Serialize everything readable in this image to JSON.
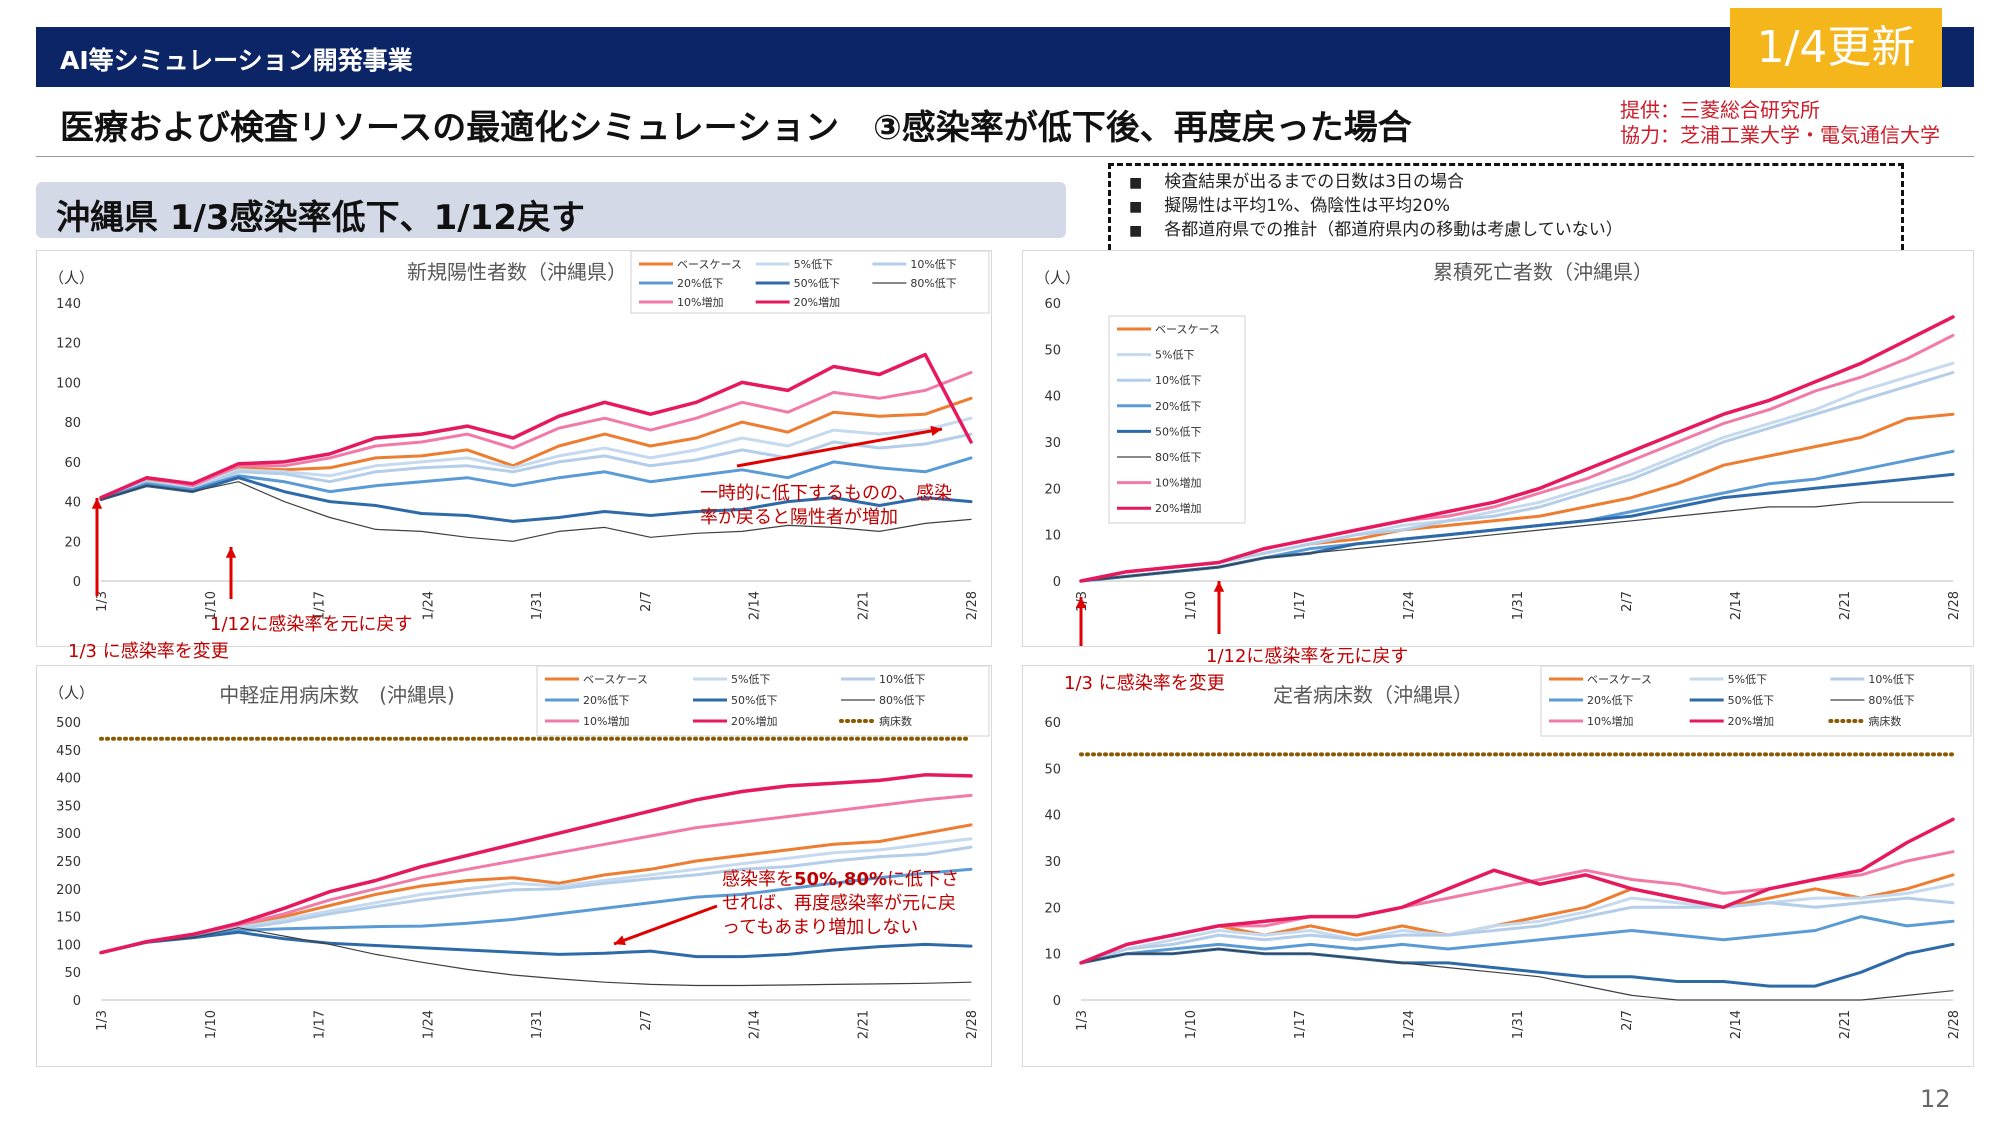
{
  "header": {
    "category": "AI等シミュレーション開発事業",
    "update_badge": "1/4更新",
    "title": "医療および検査リソースの最適化シミュレーション　③感染率が低下後、再度戻った場合",
    "credit_line1": "提供：三菱総合研究所",
    "credit_line2": "協力：芝浦工業大学・電気通信大学"
  },
  "subheader": "沖縄県 1/3感染率低下、1/12戻す",
  "notes": [
    "検査結果が出るまでの日数は3日の場合",
    "擬陽性は平均1%、偽陰性は平均20%",
    "各都道府県での推計（都道府県内の移動は考慮していない）"
  ],
  "page_number": "12",
  "colors": {
    "ベースケース": "#ed7d31",
    "5%低下": "#c5d9ef",
    "10%低下": "#b4cde9",
    "20%低下": "#5b9bd5",
    "50%低下": "#2e6aa8",
    "80%低下": "#404040",
    "10%増加": "#f27aa8",
    "20%増加": "#e6195f",
    "病床数": "#8a5a00"
  },
  "annotations": {
    "c1_arrow_text": "一時的に低下するものの、感染率が戻ると陽性者が増加",
    "c1_change": "1/3 に感染率を変更",
    "c1_restore": "1/12に感染率を元に戻す",
    "c2_change": "1/3 に感染率を変更",
    "c2_restore": "1/12に感染率を元に戻す",
    "c3_arrow_text_a": "感染率を",
    "c3_arrow_text_b": "50%,80%",
    "c3_arrow_text_c": "に低下させれば、再度感染率が元に戻ってもあまり増加しない"
  },
  "chart_data": [
    {
      "type": "line",
      "title": "新規陽性者数（沖縄県）",
      "ylabel": "（人）",
      "ylim": [
        0,
        140
      ],
      "yticks": [
        0,
        20,
        40,
        60,
        80,
        100,
        120,
        140
      ],
      "xtick_labels": [
        "1/3",
        "1/10",
        "1/17",
        "1/24",
        "1/31",
        "2/7",
        "2/14",
        "2/21",
        "2/28"
      ],
      "x_start": "1/3",
      "x_end": "2/28",
      "legend": [
        "ベースケース",
        "5%低下",
        "10%低下",
        "20%低下",
        "50%低下",
        "80%低下",
        "10%増加",
        "20%増加"
      ],
      "series": [
        {
          "name": "ベースケース",
          "values": [
            41,
            51,
            47,
            57,
            56,
            57,
            62,
            63,
            66,
            58,
            68,
            74,
            68,
            72,
            80,
            75,
            85,
            83,
            84,
            92
          ]
        },
        {
          "name": "5%低下",
          "values": [
            41,
            50,
            47,
            56,
            55,
            53,
            58,
            60,
            62,
            57,
            63,
            67,
            62,
            66,
            72,
            68,
            76,
            74,
            76,
            82
          ]
        },
        {
          "name": "10%低下",
          "values": [
            41,
            50,
            46,
            55,
            54,
            50,
            55,
            57,
            58,
            55,
            60,
            63,
            58,
            61,
            66,
            62,
            70,
            67,
            69,
            74
          ]
        },
        {
          "name": "20%低下",
          "values": [
            41,
            49,
            46,
            53,
            50,
            45,
            48,
            50,
            52,
            48,
            52,
            55,
            50,
            53,
            56,
            52,
            60,
            57,
            55,
            62
          ]
        },
        {
          "name": "50%低下",
          "values": [
            41,
            48,
            45,
            52,
            45,
            40,
            38,
            34,
            33,
            30,
            32,
            35,
            33,
            35,
            36,
            40,
            42,
            38,
            42,
            40
          ]
        },
        {
          "name": "80%低下",
          "values": [
            41,
            48,
            45,
            50,
            40,
            32,
            26,
            25,
            22,
            20,
            25,
            27,
            22,
            24,
            25,
            28,
            27,
            25,
            29,
            31
          ]
        },
        {
          "name": "10%増加",
          "values": [
            42,
            52,
            48,
            58,
            58,
            62,
            68,
            70,
            74,
            67,
            77,
            82,
            76,
            82,
            90,
            85,
            95,
            92,
            96,
            105
          ]
        },
        {
          "name": "20%増加",
          "values": [
            42,
            52,
            49,
            59,
            60,
            64,
            72,
            74,
            78,
            72,
            83,
            90,
            84,
            90,
            100,
            96,
            108,
            104,
            114,
            70
          ]
        }
      ]
    },
    {
      "type": "line",
      "title": "累積死亡者数（沖縄県）",
      "ylabel": "（人）",
      "ylim": [
        0,
        60
      ],
      "yticks": [
        0,
        10,
        20,
        30,
        40,
        50,
        60
      ],
      "xtick_labels": [
        "1/3",
        "1/10",
        "1/17",
        "1/24",
        "1/31",
        "2/7",
        "2/14",
        "2/21",
        "2/28"
      ],
      "x_start": "1/3",
      "x_end": "2/28",
      "legend": [
        "ベースケース",
        "5%低下",
        "10%低下",
        "20%低下",
        "50%低下",
        "80%低下",
        "10%増加",
        "20%増加"
      ],
      "series": [
        {
          "name": "ベースケース",
          "values": [
            0,
            2,
            3,
            4,
            6,
            8,
            9,
            11,
            12,
            13,
            14,
            16,
            18,
            21,
            25,
            27,
            29,
            31,
            35,
            36
          ]
        },
        {
          "name": "5%低下",
          "values": [
            0,
            2,
            3,
            4,
            6,
            8,
            10,
            12,
            13,
            15,
            17,
            20,
            23,
            27,
            31,
            34,
            37,
            41,
            44,
            47
          ]
        },
        {
          "name": "10%低下",
          "values": [
            0,
            2,
            3,
            4,
            6,
            8,
            10,
            11,
            13,
            14,
            16,
            19,
            22,
            26,
            30,
            33,
            36,
            39,
            42,
            45
          ]
        },
        {
          "name": "20%低下",
          "values": [
            0,
            1,
            2,
            3,
            5,
            7,
            8,
            9,
            10,
            11,
            12,
            13,
            15,
            17,
            19,
            21,
            22,
            24,
            26,
            28
          ]
        },
        {
          "name": "50%低下",
          "values": [
            0,
            1,
            2,
            3,
            5,
            6,
            8,
            9,
            10,
            11,
            12,
            13,
            14,
            16,
            18,
            19,
            20,
            21,
            22,
            23
          ]
        },
        {
          "name": "80%低下",
          "values": [
            0,
            1,
            2,
            3,
            5,
            6,
            7,
            8,
            9,
            10,
            11,
            12,
            13,
            14,
            15,
            16,
            16,
            17,
            17,
            17
          ]
        },
        {
          "name": "10%増加",
          "values": [
            0,
            2,
            3,
            4,
            7,
            9,
            11,
            13,
            14,
            16,
            19,
            22,
            26,
            30,
            34,
            37,
            41,
            44,
            48,
            53
          ]
        },
        {
          "name": "20%増加",
          "values": [
            0,
            2,
            3,
            4,
            7,
            9,
            11,
            13,
            15,
            17,
            20,
            24,
            28,
            32,
            36,
            39,
            43,
            47,
            52,
            57
          ]
        }
      ]
    },
    {
      "type": "line",
      "title": "中軽症用病床数　(沖縄県)",
      "ylabel": "（人）",
      "ylim": [
        0,
        500
      ],
      "yticks": [
        0,
        50,
        100,
        150,
        200,
        250,
        300,
        350,
        400,
        450,
        500
      ],
      "xtick_labels": [
        "1/3",
        "1/10",
        "1/17",
        "1/24",
        "1/31",
        "2/7",
        "2/14",
        "2/21",
        "2/28"
      ],
      "x_start": "1/3",
      "x_end": "2/28",
      "legend": [
        "ベースケース",
        "5%低下",
        "10%低下",
        "20%低下",
        "50%低下",
        "80%低下",
        "10%増加",
        "20%増加",
        "病床数"
      ],
      "series": [
        {
          "name": "ベースケース",
          "values": [
            85,
            105,
            115,
            130,
            150,
            170,
            190,
            205,
            215,
            220,
            210,
            225,
            235,
            250,
            260,
            270,
            280,
            285,
            300,
            315
          ]
        },
        {
          "name": "5%低下",
          "values": [
            85,
            105,
            115,
            130,
            145,
            160,
            175,
            190,
            200,
            210,
            205,
            215,
            225,
            235,
            245,
            255,
            265,
            270,
            280,
            290
          ]
        },
        {
          "name": "10%低下",
          "values": [
            85,
            104,
            114,
            128,
            140,
            155,
            168,
            180,
            190,
            198,
            200,
            210,
            218,
            225,
            235,
            240,
            250,
            258,
            262,
            275
          ]
        },
        {
          "name": "20%低下",
          "values": [
            85,
            104,
            114,
            125,
            128,
            130,
            132,
            133,
            138,
            145,
            155,
            165,
            175,
            185,
            190,
            200,
            210,
            220,
            228,
            235
          ]
        },
        {
          "name": "50%低下",
          "values": [
            85,
            104,
            112,
            122,
            110,
            102,
            98,
            94,
            90,
            86,
            82,
            84,
            88,
            78,
            78,
            82,
            90,
            96,
            100,
            97
          ]
        },
        {
          "name": "80%低下",
          "values": [
            85,
            104,
            112,
            130,
            115,
            100,
            82,
            68,
            55,
            45,
            38,
            32,
            28,
            26,
            26,
            27,
            28,
            29,
            30,
            32
          ]
        },
        {
          "name": "10%増加",
          "values": [
            85,
            105,
            118,
            135,
            155,
            180,
            200,
            220,
            235,
            250,
            265,
            280,
            295,
            310,
            320,
            330,
            340,
            350,
            360,
            368
          ]
        },
        {
          "name": "20%増加",
          "values": [
            85,
            105,
            118,
            138,
            165,
            195,
            215,
            240,
            260,
            280,
            300,
            320,
            340,
            360,
            375,
            385,
            390,
            395,
            405,
            403
          ]
        },
        {
          "name": "病床数",
          "values": [
            470,
            470,
            470,
            470,
            470,
            470,
            470,
            470,
            470,
            470,
            470,
            470,
            470,
            470,
            470,
            470,
            470,
            470,
            470,
            470
          ]
        }
      ]
    },
    {
      "type": "line",
      "title": "定者病床数（沖縄県）",
      "ylim": [
        0,
        60
      ],
      "yticks": [
        0,
        10,
        20,
        30,
        40,
        50,
        60
      ],
      "xtick_labels": [
        "1/3",
        "1/10",
        "1/17",
        "1/24",
        "1/31",
        "2/7",
        "2/14",
        "2/21",
        "2/28"
      ],
      "x_start": "1/3",
      "x_end": "2/28",
      "legend": [
        "ベースケース",
        "5%低下",
        "10%低下",
        "20%低下",
        "50%低下",
        "80%低下",
        "10%増加",
        "20%増加",
        "病床数"
      ],
      "series": [
        {
          "name": "ベースケース",
          "values": [
            8,
            12,
            14,
            16,
            14,
            16,
            14,
            16,
            14,
            16,
            18,
            20,
            24,
            22,
            20,
            22,
            24,
            22,
            24,
            27
          ]
        },
        {
          "name": "5%低下",
          "values": [
            8,
            11,
            13,
            15,
            14,
            15,
            13,
            15,
            14,
            16,
            17,
            19,
            22,
            21,
            20,
            21,
            22,
            22,
            23,
            25
          ]
        },
        {
          "name": "10%低下",
          "values": [
            8,
            11,
            12,
            14,
            13,
            14,
            13,
            14,
            14,
            15,
            16,
            18,
            20,
            20,
            20,
            21,
            20,
            21,
            22,
            21
          ]
        },
        {
          "name": "20%低下",
          "values": [
            8,
            10,
            11,
            12,
            11,
            12,
            11,
            12,
            11,
            12,
            13,
            14,
            15,
            14,
            13,
            14,
            15,
            18,
            16,
            17
          ]
        },
        {
          "name": "50%低下",
          "values": [
            8,
            10,
            10,
            11,
            10,
            10,
            9,
            8,
            8,
            7,
            6,
            5,
            5,
            4,
            4,
            3,
            3,
            6,
            10,
            12
          ]
        },
        {
          "name": "80%低下",
          "values": [
            8,
            10,
            10,
            11,
            10,
            10,
            9,
            8,
            7,
            6,
            5,
            3,
            1,
            0,
            0,
            0,
            0,
            0,
            1,
            2
          ]
        },
        {
          "name": "10%増加",
          "values": [
            8,
            12,
            14,
            16,
            16,
            18,
            18,
            20,
            22,
            24,
            26,
            28,
            26,
            25,
            23,
            24,
            26,
            27,
            30,
            32
          ]
        },
        {
          "name": "20%増加",
          "values": [
            8,
            12,
            14,
            16,
            17,
            18,
            18,
            20,
            24,
            28,
            25,
            27,
            24,
            22,
            20,
            24,
            26,
            28,
            34,
            39
          ]
        },
        {
          "name": "病床数",
          "values": [
            53,
            53,
            53,
            53,
            53,
            53,
            53,
            53,
            53,
            53,
            53,
            53,
            53,
            53,
            53,
            53,
            53,
            53,
            53,
            53
          ]
        }
      ]
    }
  ]
}
